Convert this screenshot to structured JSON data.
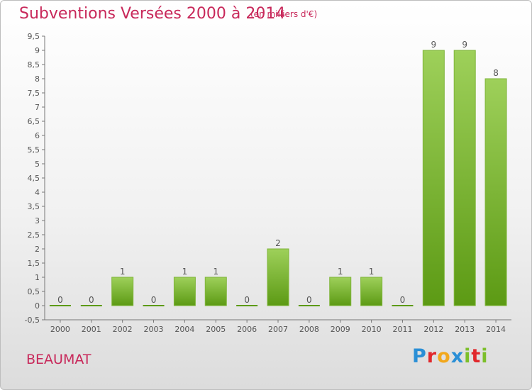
{
  "header": {
    "title": "Subventions Versées 2000 à 2014",
    "unit": "(en milliers d'€)"
  },
  "footer": {
    "commune": "BEAUMAT",
    "logo": {
      "letters": [
        "P",
        "r",
        "o",
        "x",
        "i",
        "t",
        "i"
      ],
      "colors": [
        "#2a8fd6",
        "#e1282c",
        "#f2a81d",
        "#2a8fd6",
        "#7cbf2a",
        "#e1282c",
        "#7cbf2a"
      ]
    }
  },
  "colors": {
    "bar_light": "#9ed05a",
    "bar_dark": "#5c9a14",
    "title": "#c8285a"
  },
  "chart_data": {
    "type": "bar",
    "title": "Subventions Versées 2000 à 2014",
    "subtitle": "(en milliers d'€)",
    "categories": [
      "2000",
      "2001",
      "2002",
      "2003",
      "2004",
      "2005",
      "2006",
      "2007",
      "2008",
      "2009",
      "2010",
      "2011",
      "2012",
      "2013",
      "2014"
    ],
    "values": [
      0,
      0,
      1,
      0,
      1,
      1,
      0,
      2,
      0,
      1,
      1,
      0,
      9,
      9,
      8
    ],
    "data_labels": [
      "0",
      "0",
      "1",
      "0",
      "1",
      "1",
      "0",
      "2",
      "0",
      "1",
      "1",
      "0",
      "9",
      "9",
      "8"
    ],
    "ylim": [
      -0.5,
      9.5
    ],
    "yticks": [
      "-0,5",
      "0",
      "0,5",
      "1",
      "1,5",
      "2",
      "2,5",
      "3",
      "3,5",
      "4",
      "4,5",
      "5",
      "5,5",
      "6",
      "6,5",
      "7",
      "7,5",
      "8",
      "8,5",
      "9",
      "9,5"
    ],
    "ytick_values": [
      -0.5,
      0,
      0.5,
      1,
      1.5,
      2,
      2.5,
      3,
      3.5,
      4,
      4.5,
      5,
      5.5,
      6,
      6.5,
      7,
      7.5,
      8,
      8.5,
      9,
      9.5
    ],
    "xlabel": "",
    "ylabel": "",
    "grid": false,
    "legend": "none"
  }
}
